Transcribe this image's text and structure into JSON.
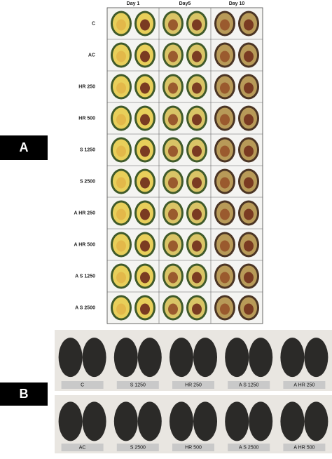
{
  "panel_a": {
    "label": "A",
    "columns": [
      "Day 1",
      "Day5",
      "Day 10"
    ],
    "rows": [
      "C",
      "AC",
      "HR 250",
      "HR 500",
      "S 1250",
      "S 2500",
      "A HR 250",
      "A HR 500",
      "A S 1250",
      "A S 2500"
    ]
  },
  "panel_b": {
    "label": "B",
    "rows": [
      [
        "C",
        "S 1250",
        "HR 250",
        "A S 1250",
        "A HR 250"
      ],
      [
        "AC",
        "S 2500",
        "HR 500",
        "A S 2500",
        "A HR 500"
      ]
    ]
  }
}
